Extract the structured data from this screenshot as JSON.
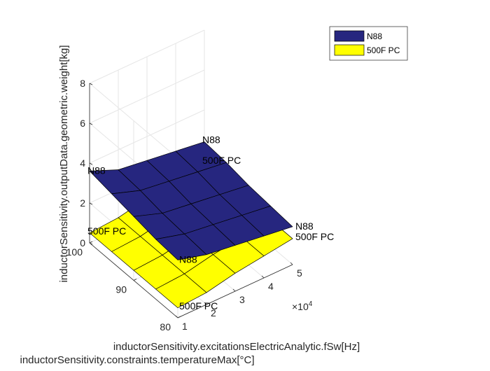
{
  "chart_data": {
    "type": "surface3d",
    "xlabel": "inductorSensitivity.excitationsElectricAnalytic.fSw[Hz]",
    "ylabel": "inductorSensitivity.constraints.temperatureMax[°C]",
    "zlabel": "inductorSensitivity.outputData.geometric.weight[kg]",
    "x_exponent_label": "×10",
    "x_exponent_power": "4",
    "xlim": [
      10000,
      50000
    ],
    "ylim": [
      80,
      100
    ],
    "zlim": [
      0,
      8
    ],
    "x_ticks": [
      10000,
      20000,
      30000,
      40000,
      50000
    ],
    "x_tick_labels": [
      "1",
      "2",
      "3",
      "4",
      "5"
    ],
    "y_ticks": [
      80,
      90,
      100
    ],
    "y_tick_labels": [
      "80",
      "90",
      "100"
    ],
    "z_ticks": [
      0,
      2,
      4,
      6,
      8
    ],
    "z_tick_labels": [
      "0",
      "2",
      "4",
      "6",
      "8"
    ],
    "x": [
      10000,
      20000,
      30000,
      40000,
      50000
    ],
    "y": [
      80,
      85,
      90,
      95,
      100
    ],
    "series": [
      {
        "name": "N88",
        "color": "#26267f",
        "z": [
          [
            2.9,
            2.5,
            2.3,
            2.1,
            1.9
          ],
          [
            3.0,
            2.6,
            2.4,
            2.2,
            2.0
          ],
          [
            3.2,
            2.7,
            2.5,
            2.3,
            2.1
          ],
          [
            3.4,
            2.9,
            2.7,
            2.5,
            2.3
          ],
          [
            3.6,
            3.0,
            2.8,
            2.6,
            2.4
          ]
        ],
        "point_labels": [
          "N88",
          "N88",
          "N88",
          "N88"
        ]
      },
      {
        "name": "500F PC",
        "color": "#ffff00",
        "z": [
          [
            0.5,
            0.6,
            0.9,
            1.1,
            1.3
          ],
          [
            0.5,
            0.6,
            0.9,
            1.1,
            1.3
          ],
          [
            0.5,
            0.6,
            0.9,
            1.1,
            1.3
          ],
          [
            0.5,
            0.6,
            0.9,
            1.1,
            1.3
          ],
          [
            0.5,
            0.6,
            0.9,
            1.1,
            1.3
          ]
        ],
        "point_labels": [
          "500F PC",
          "500F PC",
          "500F PC",
          "500F PC"
        ]
      }
    ],
    "grid": true,
    "legend": "top-right"
  }
}
